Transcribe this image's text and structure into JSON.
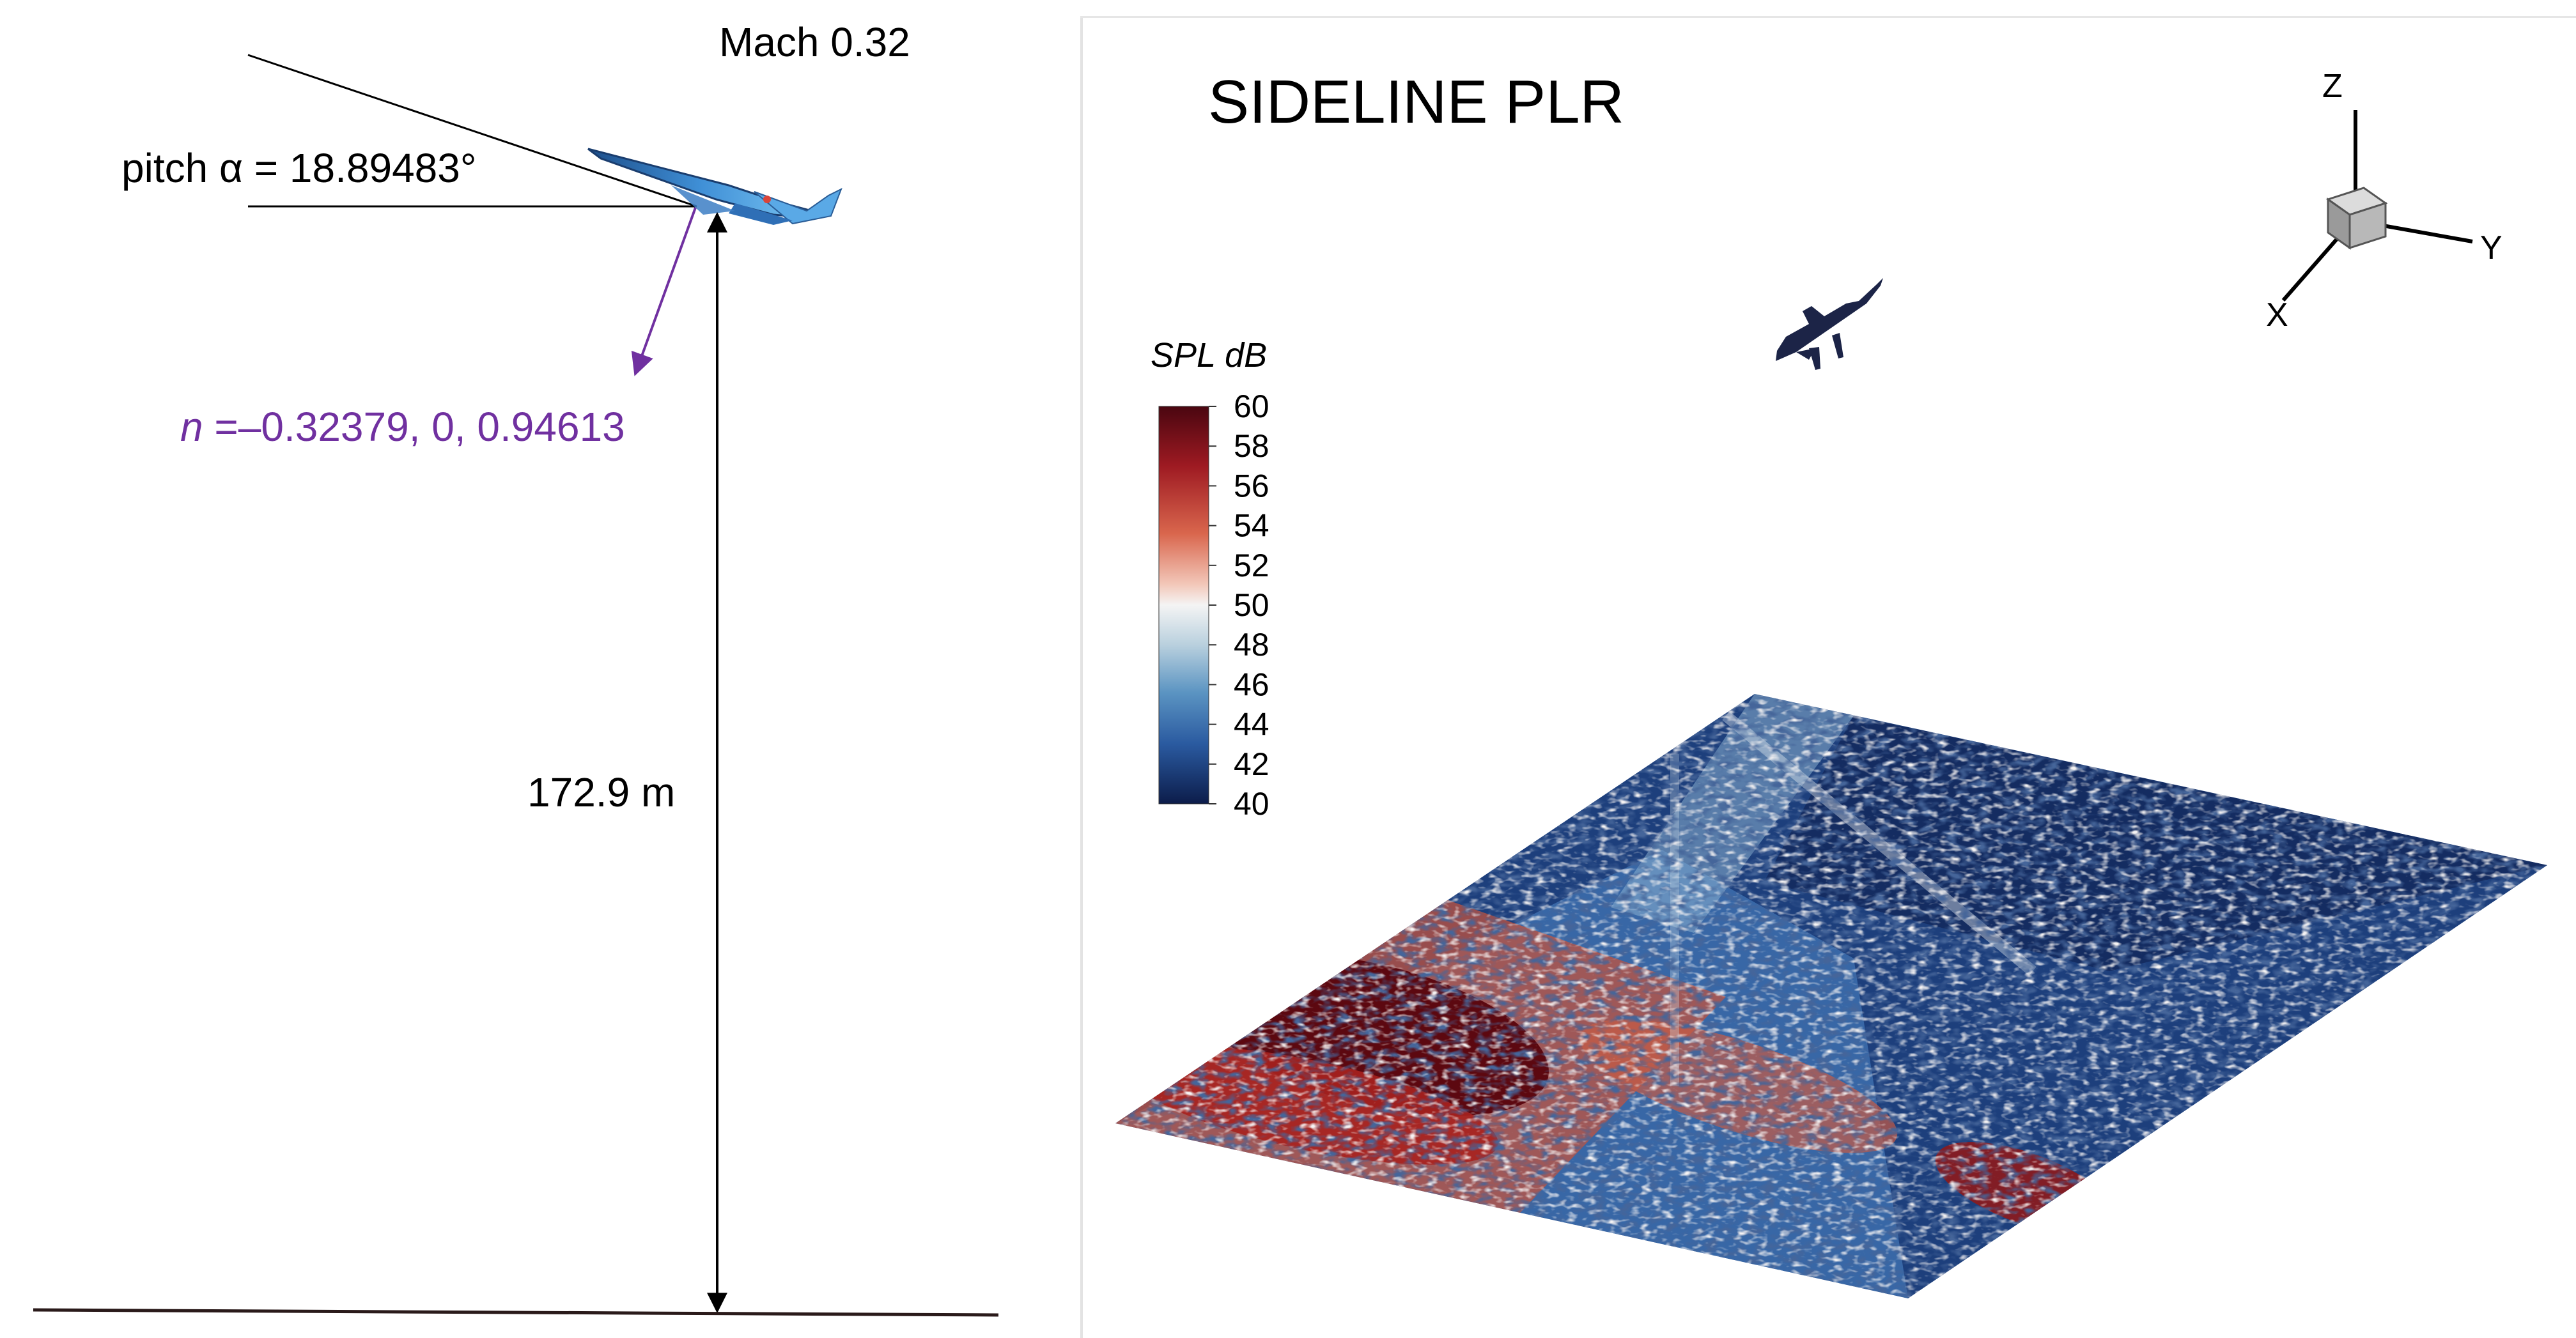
{
  "left_panel": {
    "mach_label": "Mach 0.32",
    "pitch_label": "pitch α = 18.89483°",
    "normal_symbol": "n",
    "normal_value": " =–0.32379, 0, 0.94613",
    "altitude_label": "172.9 m"
  },
  "right_panel": {
    "title": "SIDELINE PLR",
    "colorbar": {
      "title": "SPL dB",
      "min": 40,
      "max": 60,
      "ticks": [
        "60",
        "58",
        "56",
        "54",
        "52",
        "50",
        "48",
        "46",
        "44",
        "42",
        "40"
      ]
    },
    "axes_triad": {
      "z": "Z",
      "y": "Y",
      "x": "X"
    }
  },
  "colors": {
    "normal_vector": "#7030a0",
    "colormap_high": "#5c0a14",
    "colormap_mid": "#f5f3f3",
    "colormap_low": "#0c1f4d",
    "aircraft_left": "#3a8fd4",
    "aircraft_right": "#1c2447"
  }
}
